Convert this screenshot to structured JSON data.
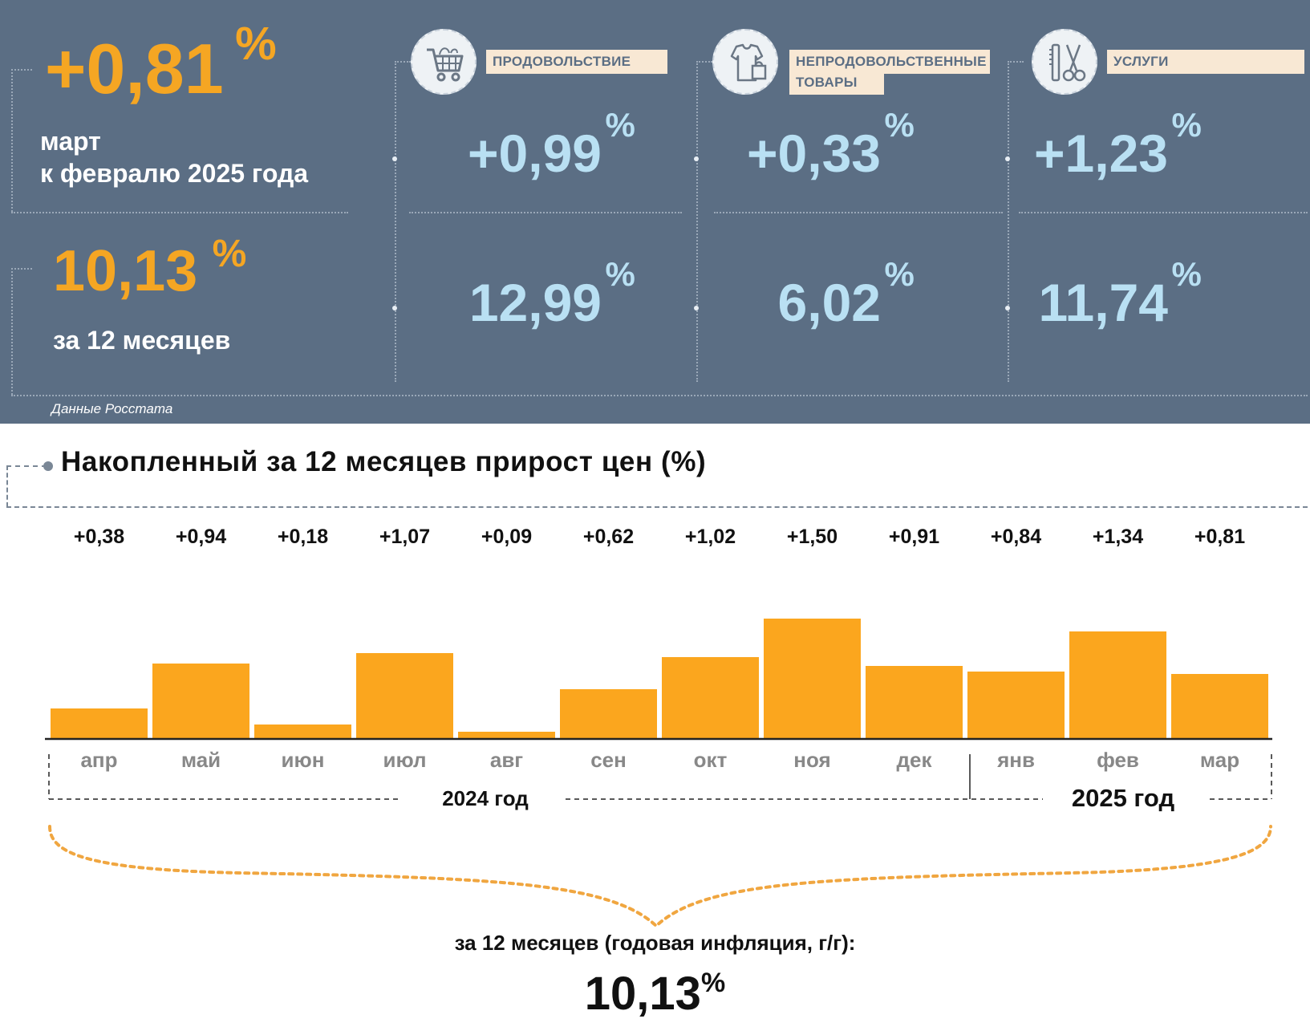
{
  "header": {
    "monthly": {
      "value": "+0,81",
      "unit": "%",
      "line1": "март",
      "line2": "к февралю 2025 года"
    },
    "annual": {
      "value": "10,13",
      "unit": "%",
      "label": "за 12 месяцев"
    },
    "source": "Данные Росстата"
  },
  "categories": [
    {
      "name": "ПРОДОВОЛЬСТВИЕ",
      "icon": "shopping-cart-icon",
      "monthly": "+0,99",
      "annual": "12,99",
      "unit": "%"
    },
    {
      "name_line1": "НЕПРОДОВОЛЬСТВЕННЫЕ",
      "name_line2": "ТОВАРЫ",
      "icon": "clothing-bag-icon",
      "monthly": "+0,33",
      "annual": "6,02",
      "unit": "%"
    },
    {
      "name": "УСЛУГИ",
      "icon": "scissors-comb-icon",
      "monthly": "+1,23",
      "annual": "11,74",
      "unit": "%"
    }
  ],
  "colors": {
    "panel": "#5b6e84",
    "accent_orange": "#f5a623",
    "bar": "#fba61e",
    "value_blue": "#b9e0f3",
    "label_bg": "#f8e8d4"
  },
  "chart_data": {
    "type": "bar",
    "title": "Накопленный за 12 месяцев прирост цен (%)",
    "categories": [
      "апр",
      "май",
      "июн",
      "июл",
      "авг",
      "сен",
      "окт",
      "ноя",
      "дек",
      "янв",
      "фев",
      "мар"
    ],
    "values": [
      0.38,
      0.94,
      0.18,
      1.07,
      0.09,
      0.62,
      1.02,
      1.5,
      0.91,
      0.84,
      1.34,
      0.81
    ],
    "value_labels": [
      "+0,38",
      "+0,94",
      "+0,18",
      "+1,07",
      "+0,09",
      "+0,62",
      "+1,02",
      "+1,50",
      "+0,91",
      "+0,84",
      "+1,34",
      "+0,81"
    ],
    "years": [
      {
        "label": "2024 год",
        "months": 9
      },
      {
        "label": "2025 год",
        "months": 3
      }
    ],
    "ylim": [
      0,
      1.6
    ],
    "grid": false,
    "annual_caption": "за 12 месяцев (годовая инфляция, г/г):",
    "annual_value": "10,13",
    "annual_unit": "%"
  }
}
